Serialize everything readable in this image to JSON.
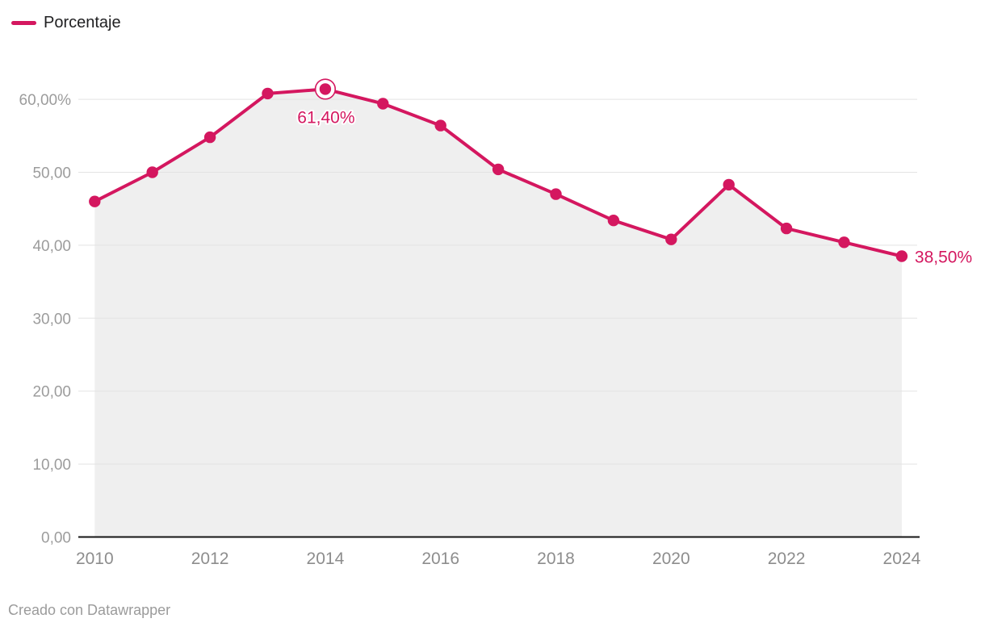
{
  "legend": {
    "label": "Porcentaje"
  },
  "footer": {
    "text": "Creado con Datawrapper"
  },
  "colors": {
    "accent": "#d4175f",
    "area_fill": "#efefef",
    "grid": "#e3e3e3",
    "axis": "#141414",
    "y_tick_text": "#9c9c9c",
    "x_tick_text": "#8d8d8d",
    "annotation_text": "#d4175f",
    "footer_text": "#9b9b9b",
    "background": "#ffffff"
  },
  "chart_data": {
    "type": "area",
    "title": "",
    "xlabel": "",
    "ylabel": "",
    "x": [
      2010,
      2011,
      2012,
      2013,
      2014,
      2015,
      2016,
      2017,
      2018,
      2019,
      2020,
      2021,
      2022,
      2023,
      2024
    ],
    "series": [
      {
        "name": "Porcentaje",
        "values": [
          46.0,
          50.0,
          54.8,
          60.8,
          61.4,
          59.4,
          56.4,
          50.4,
          47.0,
          43.4,
          40.8,
          48.3,
          42.3,
          40.4,
          38.5
        ]
      }
    ],
    "xlim": [
      2010,
      2024
    ],
    "ylim": [
      0,
      63.5
    ],
    "grid": true,
    "area_fill": true,
    "legend_position": "top-left",
    "x_ticks": [
      {
        "value": 2010,
        "label": "2010"
      },
      {
        "value": 2012,
        "label": "2012"
      },
      {
        "value": 2014,
        "label": "2014"
      },
      {
        "value": 2016,
        "label": "2016"
      },
      {
        "value": 2018,
        "label": "2018"
      },
      {
        "value": 2020,
        "label": "2020"
      },
      {
        "value": 2022,
        "label": "2022"
      },
      {
        "value": 2024,
        "label": "2024"
      }
    ],
    "y_ticks": [
      {
        "value": 0,
        "label": "0,00"
      },
      {
        "value": 10,
        "label": "10,00"
      },
      {
        "value": 20,
        "label": "20,00"
      },
      {
        "value": 30,
        "label": "30,00"
      },
      {
        "value": 40,
        "label": "40,00"
      },
      {
        "value": 50,
        "label": "50,00"
      },
      {
        "value": 60,
        "label": "60,00%"
      }
    ],
    "annotations": [
      {
        "target_year": 2014,
        "value": 61.4,
        "label": "61,40%",
        "placement": "below",
        "ring": true
      },
      {
        "target_year": 2024,
        "value": 38.5,
        "label": "38,50%",
        "placement": "right",
        "ring": false
      }
    ]
  }
}
